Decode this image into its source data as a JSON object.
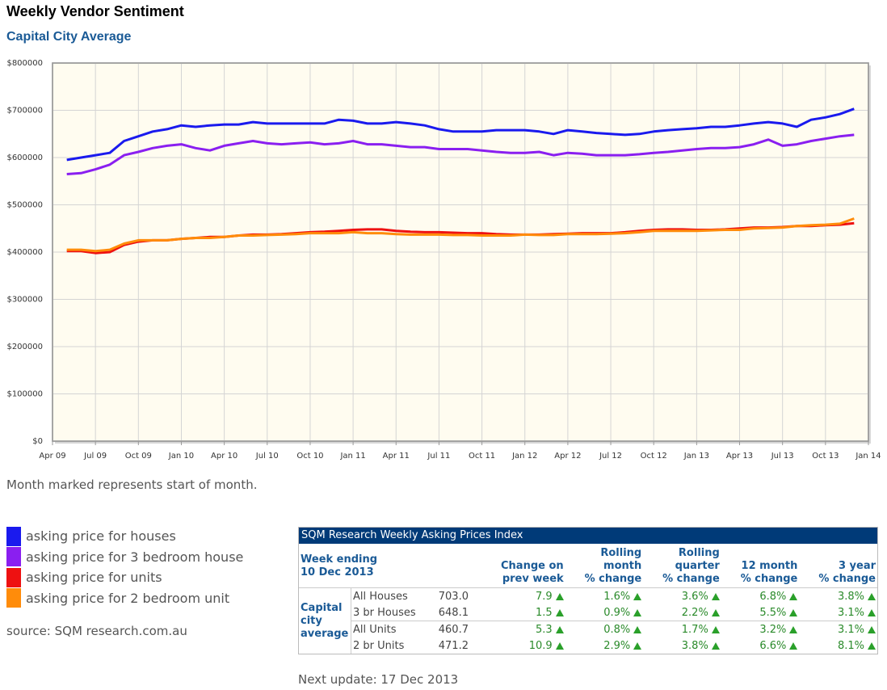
{
  "chart_data": {
    "type": "line",
    "title": "Weekly Vendor Sentiment",
    "subtitle": "Capital City Average",
    "x": [
      "2009-05",
      "2009-06",
      "2009-07",
      "2009-08",
      "2009-09",
      "2009-10",
      "2009-11",
      "2009-12",
      "2010-01",
      "2010-02",
      "2010-03",
      "2010-04",
      "2010-05",
      "2010-06",
      "2010-07",
      "2010-08",
      "2010-09",
      "2010-10",
      "2010-11",
      "2010-12",
      "2011-01",
      "2011-02",
      "2011-03",
      "2011-04",
      "2011-05",
      "2011-06",
      "2011-07",
      "2011-08",
      "2011-09",
      "2011-10",
      "2011-11",
      "2011-12",
      "2012-01",
      "2012-02",
      "2012-03",
      "2012-04",
      "2012-05",
      "2012-06",
      "2012-07",
      "2012-08",
      "2012-09",
      "2012-10",
      "2012-11",
      "2012-12",
      "2013-01",
      "2013-02",
      "2013-03",
      "2013-04",
      "2013-05",
      "2013-06",
      "2013-07",
      "2013-08",
      "2013-09",
      "2013-10",
      "2013-11",
      "2013-12"
    ],
    "xlim": [
      "2009-04",
      "2014-01"
    ],
    "xticks": [
      {
        "value": "2009-04",
        "label": "Apr 09"
      },
      {
        "value": "2009-07",
        "label": "Jul 09"
      },
      {
        "value": "2009-10",
        "label": "Oct 09"
      },
      {
        "value": "2010-01",
        "label": "Jan 10"
      },
      {
        "value": "2010-04",
        "label": "Apr 10"
      },
      {
        "value": "2010-07",
        "label": "Jul 10"
      },
      {
        "value": "2010-10",
        "label": "Oct 10"
      },
      {
        "value": "2011-01",
        "label": "Jan 11"
      },
      {
        "value": "2011-04",
        "label": "Apr 11"
      },
      {
        "value": "2011-07",
        "label": "Jul 11"
      },
      {
        "value": "2011-10",
        "label": "Oct 11"
      },
      {
        "value": "2012-01",
        "label": "Jan 12"
      },
      {
        "value": "2012-04",
        "label": "Apr 12"
      },
      {
        "value": "2012-07",
        "label": "Jul 12"
      },
      {
        "value": "2012-10",
        "label": "Oct 12"
      },
      {
        "value": "2013-01",
        "label": "Jan 13"
      },
      {
        "value": "2013-04",
        "label": "Apr 13"
      },
      {
        "value": "2013-07",
        "label": "Jul 13"
      },
      {
        "value": "2013-10",
        "label": "Oct 13"
      },
      {
        "value": "2014-01",
        "label": "Jan 14"
      }
    ],
    "ylim": [
      0,
      800000
    ],
    "yticks": [
      {
        "value": 0,
        "label": "$0"
      },
      {
        "value": 100000,
        "label": "$100000"
      },
      {
        "value": 200000,
        "label": "$200000"
      },
      {
        "value": 300000,
        "label": "$300000"
      },
      {
        "value": 400000,
        "label": "$400000"
      },
      {
        "value": 500000,
        "label": "$500000"
      },
      {
        "value": 600000,
        "label": "$600000"
      },
      {
        "value": 700000,
        "label": "$700000"
      },
      {
        "value": 800000,
        "label": "$800000"
      }
    ],
    "grid": true,
    "series": [
      {
        "name": "asking price for houses",
        "color": "#1a1aee",
        "values": [
          595000,
          600000,
          605000,
          610000,
          635000,
          645000,
          655000,
          660000,
          668000,
          665000,
          668000,
          670000,
          670000,
          675000,
          672000,
          672000,
          672000,
          672000,
          672000,
          680000,
          678000,
          672000,
          672000,
          675000,
          672000,
          668000,
          660000,
          655000,
          655000,
          655000,
          658000,
          658000,
          658000,
          655000,
          650000,
          658000,
          655000,
          652000,
          650000,
          648000,
          650000,
          655000,
          658000,
          660000,
          662000,
          665000,
          665000,
          668000,
          672000,
          675000,
          672000,
          665000,
          680000,
          685000,
          692000,
          703000
        ]
      },
      {
        "name": "asking price for 3 bedroom house",
        "color": "#8a1ff0",
        "values": [
          565000,
          567000,
          575000,
          585000,
          605000,
          612000,
          620000,
          625000,
          628000,
          620000,
          615000,
          625000,
          630000,
          635000,
          630000,
          628000,
          630000,
          632000,
          628000,
          630000,
          635000,
          628000,
          628000,
          625000,
          622000,
          622000,
          618000,
          618000,
          618000,
          615000,
          612000,
          610000,
          610000,
          612000,
          605000,
          610000,
          608000,
          605000,
          605000,
          605000,
          607000,
          610000,
          612000,
          615000,
          618000,
          620000,
          620000,
          622000,
          628000,
          638000,
          625000,
          628000,
          635000,
          640000,
          645000,
          648000
        ]
      },
      {
        "name": "asking price for units",
        "color": "#ee1111",
        "values": [
          402000,
          402000,
          398000,
          400000,
          415000,
          422000,
          425000,
          425000,
          428000,
          430000,
          432000,
          432000,
          435000,
          437000,
          437000,
          438000,
          440000,
          442000,
          443000,
          445000,
          447000,
          448000,
          448000,
          445000,
          443000,
          442000,
          442000,
          441000,
          440000,
          440000,
          438000,
          437000,
          437000,
          437000,
          438000,
          439000,
          440000,
          440000,
          440000,
          442000,
          445000,
          447000,
          448000,
          448000,
          447000,
          447000,
          448000,
          450000,
          452000,
          452000,
          453000,
          455000,
          455000,
          457000,
          458000,
          461000
        ]
      },
      {
        "name": "asking price for 2 bedroom unit",
        "color": "#ff8c0a",
        "values": [
          405000,
          405000,
          402000,
          405000,
          418000,
          425000,
          425000,
          425000,
          428000,
          430000,
          430000,
          432000,
          435000,
          435000,
          436000,
          437000,
          438000,
          440000,
          440000,
          440000,
          442000,
          440000,
          440000,
          438000,
          437000,
          437000,
          437000,
          436000,
          436000,
          435000,
          435000,
          435000,
          437000,
          436000,
          436000,
          438000,
          438000,
          438000,
          439000,
          440000,
          442000,
          445000,
          445000,
          445000,
          445000,
          446000,
          447000,
          447000,
          450000,
          451000,
          452000,
          455000,
          457000,
          458000,
          460000,
          471000
        ]
      }
    ]
  },
  "note": "Month marked represents start of month.",
  "source": "source: SQM research.com.au",
  "next_update": "Next update: 17 Dec 2013",
  "table": {
    "title": "SQM Research Weekly Asking Prices Index",
    "week_ending": [
      "Week ending",
      "10 Dec 2013"
    ],
    "columns": [
      [
        "Change on",
        "prev week"
      ],
      [
        "Rolling",
        "month",
        "% change"
      ],
      [
        "Rolling",
        "quarter",
        "% change"
      ],
      [
        "12 month",
        "% change"
      ],
      [
        "3 year",
        "% change"
      ]
    ],
    "group": "Capital city average",
    "rows": [
      [
        "All Houses",
        "703.0",
        "7.9",
        "1.6%",
        "3.6%",
        "6.8%",
        "3.8%"
      ],
      [
        "3 br Houses",
        "648.1",
        "1.5",
        "0.9%",
        "2.2%",
        "5.5%",
        "3.1%"
      ],
      [
        "All Units",
        "460.7",
        "5.3",
        "0.8%",
        "1.7%",
        "3.2%",
        "3.1%"
      ],
      [
        "2 br Units",
        "471.2",
        "10.9",
        "2.9%",
        "3.8%",
        "6.6%",
        "8.1%"
      ]
    ]
  }
}
